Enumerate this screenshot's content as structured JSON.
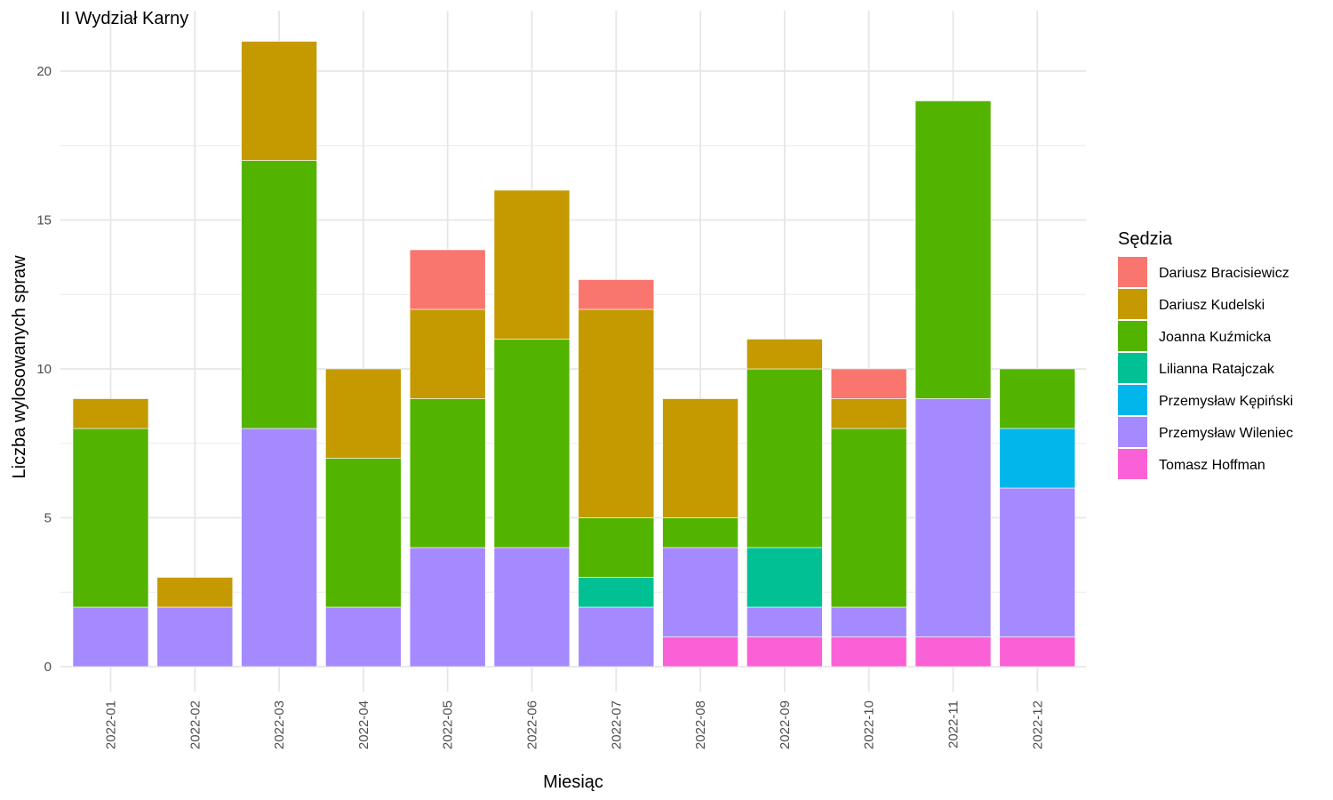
{
  "chart_data": {
    "type": "bar",
    "stacked": true,
    "title": "II Wydział Karny",
    "xlabel": "Miesiąc",
    "ylabel": "Liczba wylosowanych spraw",
    "ylim": [
      0,
      21
    ],
    "yticks": [
      0,
      5,
      10,
      15,
      20
    ],
    "grid": true,
    "legend_position": "right",
    "legend_title": "Sędzia",
    "categories": [
      "2022-01",
      "2022-02",
      "2022-03",
      "2022-04",
      "2022-05",
      "2022-06",
      "2022-07",
      "2022-08",
      "2022-09",
      "2022-10",
      "2022-11",
      "2022-12"
    ],
    "series": [
      {
        "name": "Dariusz Bracisiewicz",
        "color": "#F8766D",
        "values": [
          0,
          0,
          0,
          0,
          2,
          0,
          1,
          0,
          0,
          1,
          0,
          0
        ]
      },
      {
        "name": "Dariusz Kudelski",
        "color": "#C49A00",
        "values": [
          1,
          1,
          4,
          3,
          3,
          5,
          7,
          4,
          1,
          1,
          0,
          0
        ]
      },
      {
        "name": "Joanna Kuźmicka",
        "color": "#53B400",
        "values": [
          6,
          0,
          9,
          5,
          5,
          7,
          2,
          1,
          6,
          6,
          10,
          2
        ]
      },
      {
        "name": "Lilianna Ratajczak",
        "color": "#00C094",
        "values": [
          0,
          0,
          0,
          0,
          0,
          0,
          1,
          0,
          2,
          0,
          0,
          0
        ]
      },
      {
        "name": "Przemysław Kępiński",
        "color": "#00B6EB",
        "values": [
          0,
          0,
          0,
          0,
          0,
          0,
          0,
          0,
          0,
          0,
          0,
          2
        ]
      },
      {
        "name": "Przemysław Wileniec",
        "color": "#A58AFF",
        "values": [
          2,
          2,
          8,
          2,
          4,
          4,
          2,
          3,
          1,
          1,
          8,
          5
        ]
      },
      {
        "name": "Tomasz Hoffman",
        "color": "#FB61D7",
        "values": [
          0,
          0,
          0,
          0,
          0,
          0,
          0,
          1,
          1,
          1,
          1,
          1
        ]
      }
    ]
  }
}
